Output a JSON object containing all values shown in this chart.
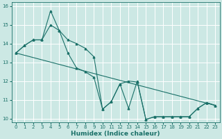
{
  "xlabel": "Humidex (Indice chaleur)",
  "bg_color": "#cce8e4",
  "grid_color": "#ffffff",
  "line_color": "#1a7068",
  "xlim": [
    -0.5,
    23.5
  ],
  "ylim": [
    9.8,
    16.2
  ],
  "xticks": [
    0,
    1,
    2,
    3,
    4,
    5,
    6,
    7,
    8,
    9,
    10,
    11,
    12,
    13,
    14,
    15,
    16,
    17,
    18,
    19,
    20,
    21,
    22,
    23
  ],
  "yticks": [
    10,
    11,
    12,
    13,
    14,
    15,
    16
  ],
  "line1_x": [
    0,
    1,
    2,
    3,
    4,
    5,
    6,
    7,
    8,
    9,
    10,
    11,
    12,
    13,
    14,
    15,
    16,
    17,
    18,
    19,
    20,
    21,
    22,
    23
  ],
  "line1_y": [
    13.5,
    13.9,
    14.2,
    14.2,
    15.75,
    14.7,
    14.2,
    14.0,
    13.75,
    13.3,
    10.5,
    10.9,
    11.85,
    10.55,
    12.0,
    9.95,
    10.1,
    10.1,
    10.1,
    10.1,
    10.1,
    10.55,
    10.85,
    10.7
  ],
  "line2_x": [
    0,
    1,
    2,
    3,
    4,
    5,
    6,
    7,
    8,
    9,
    10,
    11,
    12,
    13,
    14,
    15,
    16,
    17,
    18,
    19,
    20,
    21,
    22,
    23
  ],
  "line2_y": [
    13.5,
    13.9,
    14.2,
    14.2,
    15.0,
    14.7,
    13.5,
    12.7,
    12.5,
    12.2,
    10.5,
    10.9,
    11.85,
    12.0,
    11.95,
    9.95,
    10.1,
    10.1,
    10.1,
    10.1,
    10.1,
    10.55,
    10.85,
    10.7
  ],
  "line3_x": [
    0,
    23
  ],
  "line3_y": [
    13.5,
    10.7
  ],
  "marker_size": 2.0,
  "line_width": 0.8,
  "tick_fontsize": 5.0,
  "xlabel_fontsize": 6.5
}
